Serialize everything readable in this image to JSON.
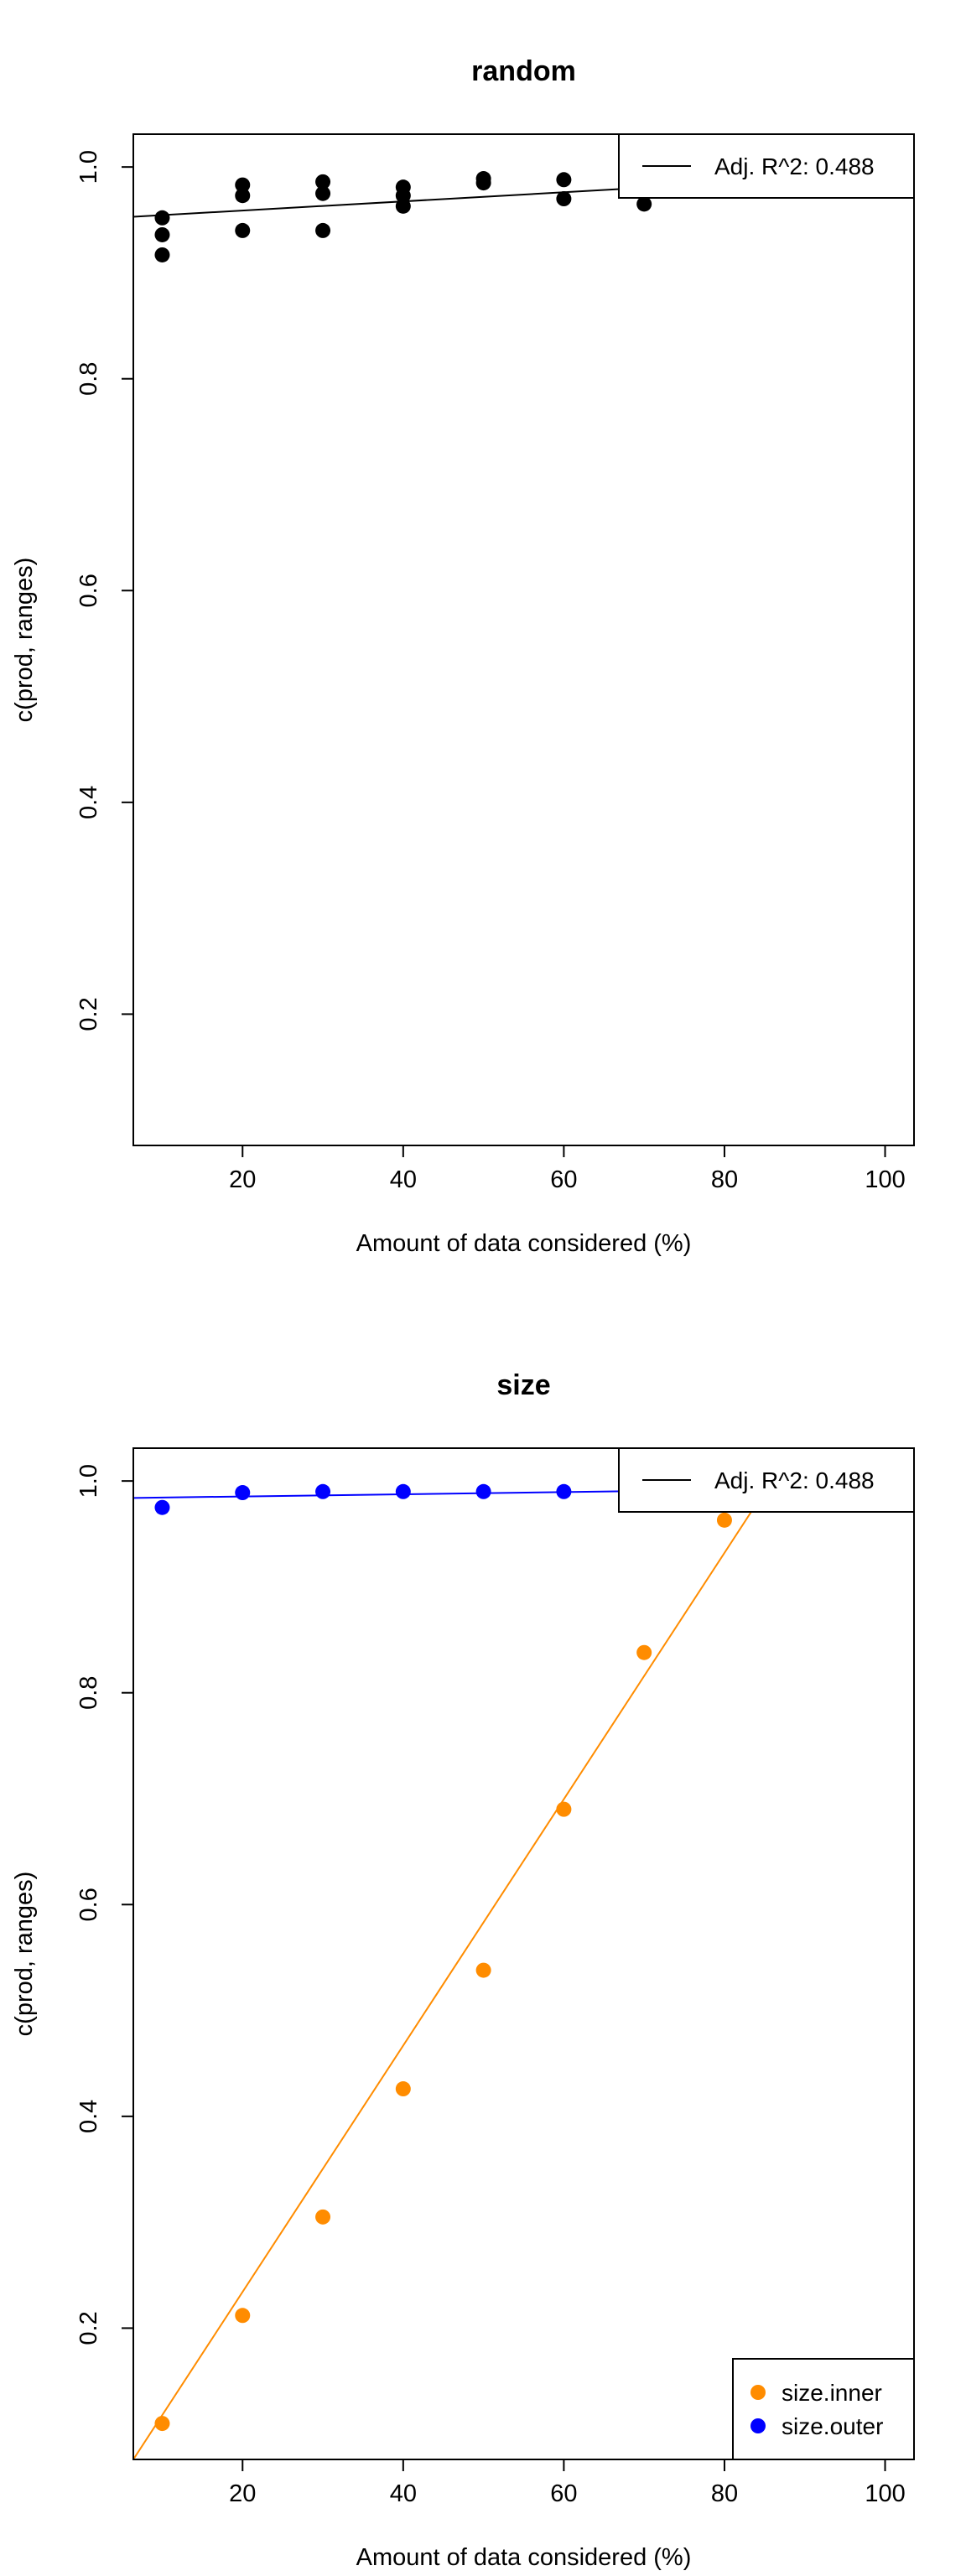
{
  "chart_data": [
    {
      "type": "scatter",
      "title": "random",
      "xlabel": "Amount of data considered (%)",
      "ylabel": "c(prod, ranges)",
      "xlim": [
        6.4,
        103.6
      ],
      "ylim": [
        0.076,
        1.031
      ],
      "xticks": [
        20,
        40,
        60,
        80,
        100
      ],
      "yticks": [
        0.2,
        0.4,
        0.6,
        0.8,
        1.0
      ],
      "grid": false,
      "legend_position": "top-right",
      "legend": [
        {
          "label": "Adj. R^2: 0.488",
          "symbol": "line",
          "color": "#000000"
        }
      ],
      "series": [
        {
          "color": "#000000",
          "points": [
            {
              "x": 10,
              "y": 0.952
            },
            {
              "x": 10,
              "y": 0.936
            },
            {
              "x": 10,
              "y": 0.917
            },
            {
              "x": 20,
              "y": 0.983
            },
            {
              "x": 20,
              "y": 0.973
            },
            {
              "x": 20,
              "y": 0.94
            },
            {
              "x": 30,
              "y": 0.986
            },
            {
              "x": 30,
              "y": 0.975
            },
            {
              "x": 30,
              "y": 0.94
            },
            {
              "x": 40,
              "y": 0.981
            },
            {
              "x": 40,
              "y": 0.973
            },
            {
              "x": 40,
              "y": 0.963
            },
            {
              "x": 50,
              "y": 0.989
            },
            {
              "x": 50,
              "y": 0.985
            },
            {
              "x": 60,
              "y": 0.988
            },
            {
              "x": 60,
              "y": 0.97
            },
            {
              "x": 70,
              "y": 0.965
            }
          ],
          "fit_line": {
            "x0": 6.4,
            "y0": 0.953,
            "x1": 103.6,
            "y1": 0.995,
            "color": "#000000"
          }
        }
      ]
    },
    {
      "type": "scatter",
      "title": "size",
      "xlabel": "Amount of data considered (%)",
      "ylabel": "c(prod, ranges)",
      "xlim": [
        6.4,
        103.6
      ],
      "ylim": [
        0.076,
        1.031
      ],
      "xticks": [
        20,
        40,
        60,
        80,
        100
      ],
      "yticks": [
        0.2,
        0.4,
        0.6,
        0.8,
        1.0
      ],
      "grid": false,
      "legend_position": "top-right",
      "legend": [
        {
          "label": "Adj. R^2: 0.488",
          "symbol": "line",
          "color": "#000000"
        }
      ],
      "legend2_position": "bottom-right",
      "legend2": [
        {
          "label": "size.inner",
          "symbol": "point",
          "color": "#ff8c00"
        },
        {
          "label": "size.outer",
          "symbol": "point",
          "color": "#0000ff"
        }
      ],
      "series": [
        {
          "name": "size.inner",
          "color": "#ff8c00",
          "points": [
            {
              "x": 10,
              "y": 0.11
            },
            {
              "x": 20,
              "y": 0.212
            },
            {
              "x": 30,
              "y": 0.305
            },
            {
              "x": 40,
              "y": 0.426
            },
            {
              "x": 50,
              "y": 0.538
            },
            {
              "x": 60,
              "y": 0.69
            },
            {
              "x": 70,
              "y": 0.838
            },
            {
              "x": 80,
              "y": 0.963
            }
          ],
          "fit_line": {
            "x0": 6.4,
            "y0": 0.076,
            "x1": 88.5,
            "y1": 1.031,
            "color": "#ff8c00"
          }
        },
        {
          "name": "size.outer",
          "color": "#0000ff",
          "points": [
            {
              "x": 10,
              "y": 0.975
            },
            {
              "x": 20,
              "y": 0.989
            },
            {
              "x": 30,
              "y": 0.99
            },
            {
              "x": 40,
              "y": 0.99
            },
            {
              "x": 50,
              "y": 0.99
            },
            {
              "x": 60,
              "y": 0.99
            }
          ],
          "fit_line": {
            "x0": 6.4,
            "y0": 0.984,
            "x1": 103.6,
            "y1": 0.994,
            "color": "#0000ff"
          }
        }
      ]
    }
  ]
}
